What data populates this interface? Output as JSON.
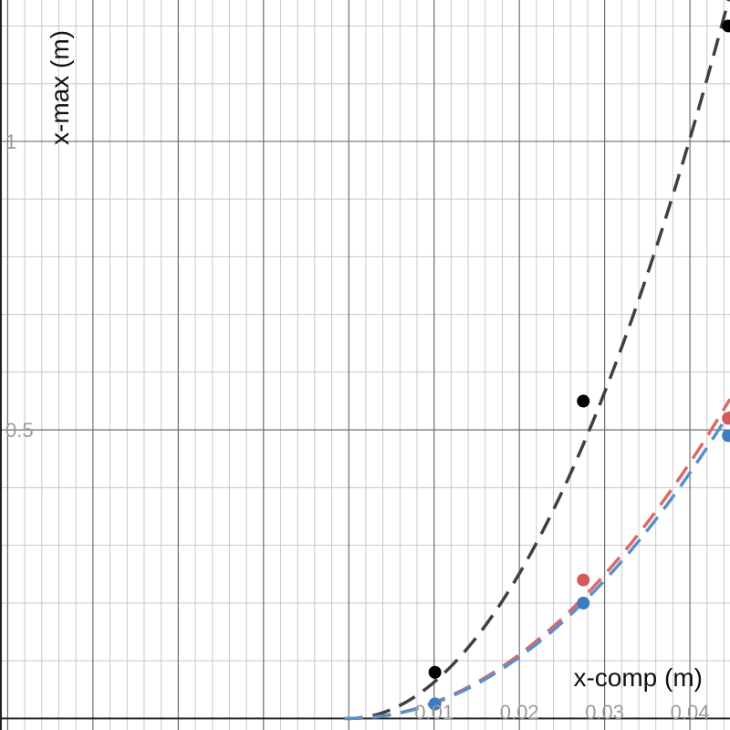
{
  "chart_data": {
    "type": "scatter",
    "title": "",
    "xlabel": "x-comp (m)",
    "ylabel": "x-max (m)",
    "xlim": [
      -0.0409,
      0.0447
    ],
    "ylim": [
      -0.02,
      1.245
    ],
    "x_ticks": [
      {
        "value": 0.01,
        "label": "0.01"
      },
      {
        "value": 0.02,
        "label": "0.02"
      },
      {
        "value": 0.03,
        "label": "0.03"
      },
      {
        "value": 0.04,
        "label": "0.04"
      }
    ],
    "y_ticks": [
      {
        "value": 0.5,
        "label": "0.5"
      },
      {
        "value": 1,
        "label": "1"
      }
    ],
    "grid": true,
    "legend": "none",
    "series": [
      {
        "color": "#000000",
        "curve_color": "#404040",
        "points": [
          {
            "x": 0.0101,
            "y": 0.08
          },
          {
            "x": 0.0275,
            "y": 0.55
          },
          {
            "x": 0.0445,
            "y": 1.2
          }
        ],
        "fit": {
          "type": "quadratic",
          "a": 628,
          "b": 0,
          "c": 0
        }
      },
      {
        "color": "#d35a5a",
        "curve_color": "#d96a6a",
        "points": [
          {
            "x": 0.0101,
            "y": 0.025
          },
          {
            "x": 0.0275,
            "y": 0.24
          },
          {
            "x": 0.0445,
            "y": 0.52
          }
        ],
        "fit": {
          "type": "quadratic",
          "a": 277,
          "b": 0,
          "c": 0
        }
      },
      {
        "color": "#3d7cc0",
        "curve_color": "#5b8fc9",
        "points": [
          {
            "x": 0.0101,
            "y": 0.025
          },
          {
            "x": 0.0275,
            "y": 0.2
          },
          {
            "x": 0.0445,
            "y": 0.49
          }
        ],
        "fit": {
          "type": "quadratic",
          "a": 266,
          "b": 0,
          "c": 0
        }
      }
    ]
  }
}
